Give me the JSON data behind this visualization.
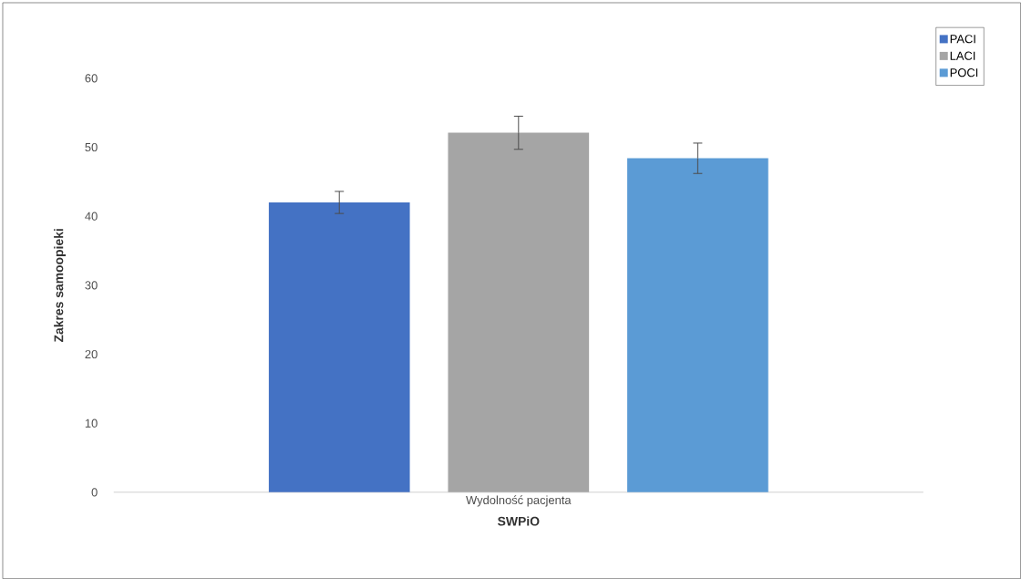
{
  "chart_data": {
    "type": "bar",
    "xlabel": "SWPiO",
    "ylabel": "Zakres samoopieki",
    "categories": [
      "Wydolność pacjenta"
    ],
    "series": [
      {
        "name": "PACI",
        "color": "#4472c4",
        "values": [
          42
        ],
        "errors": [
          1.6
        ]
      },
      {
        "name": "LACI",
        "color": "#a5a5a5",
        "values": [
          52.1
        ],
        "errors": [
          2.4
        ]
      },
      {
        "name": "POCI",
        "color": "#5b9bd5",
        "values": [
          48.4
        ],
        "errors": [
          2.2
        ]
      }
    ],
    "ylim": [
      0,
      60
    ],
    "yticks": [
      0,
      10,
      20,
      30,
      40,
      50,
      60
    ],
    "grid": false,
    "legend": "top right"
  }
}
